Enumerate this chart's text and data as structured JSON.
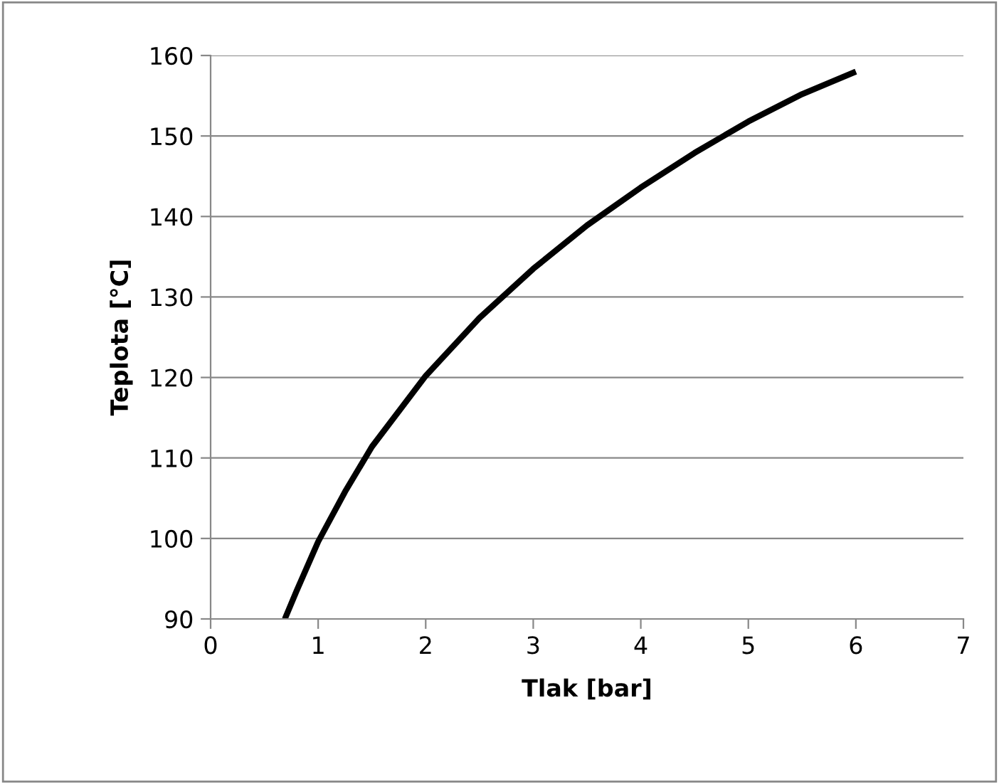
{
  "chart_data": {
    "type": "line",
    "xlabel": "Tlak [bar]",
    "ylabel": "Teplota [°C]",
    "series": [
      {
        "color": "#000000",
        "x": [
          0.69,
          0.8,
          1.0,
          1.25,
          1.5,
          2.0,
          2.5,
          3.0,
          3.5,
          4.0,
          4.5,
          5.0,
          5.5,
          6.0
        ],
        "values": [
          90,
          93.5,
          99.6,
          105.8,
          111.4,
          120.2,
          127.4,
          133.5,
          138.9,
          143.6,
          147.9,
          151.8,
          155.2,
          158.0
        ]
      }
    ],
    "xlim": [
      0,
      7
    ],
    "xticks": [
      0,
      1,
      2,
      3,
      4,
      5,
      6,
      7
    ],
    "ylim": [
      90,
      160
    ],
    "yticks": [
      90,
      100,
      110,
      120,
      130,
      140,
      150,
      160
    ],
    "grid": "y",
    "legend": false,
    "marker": "none",
    "line_style": "solid"
  }
}
